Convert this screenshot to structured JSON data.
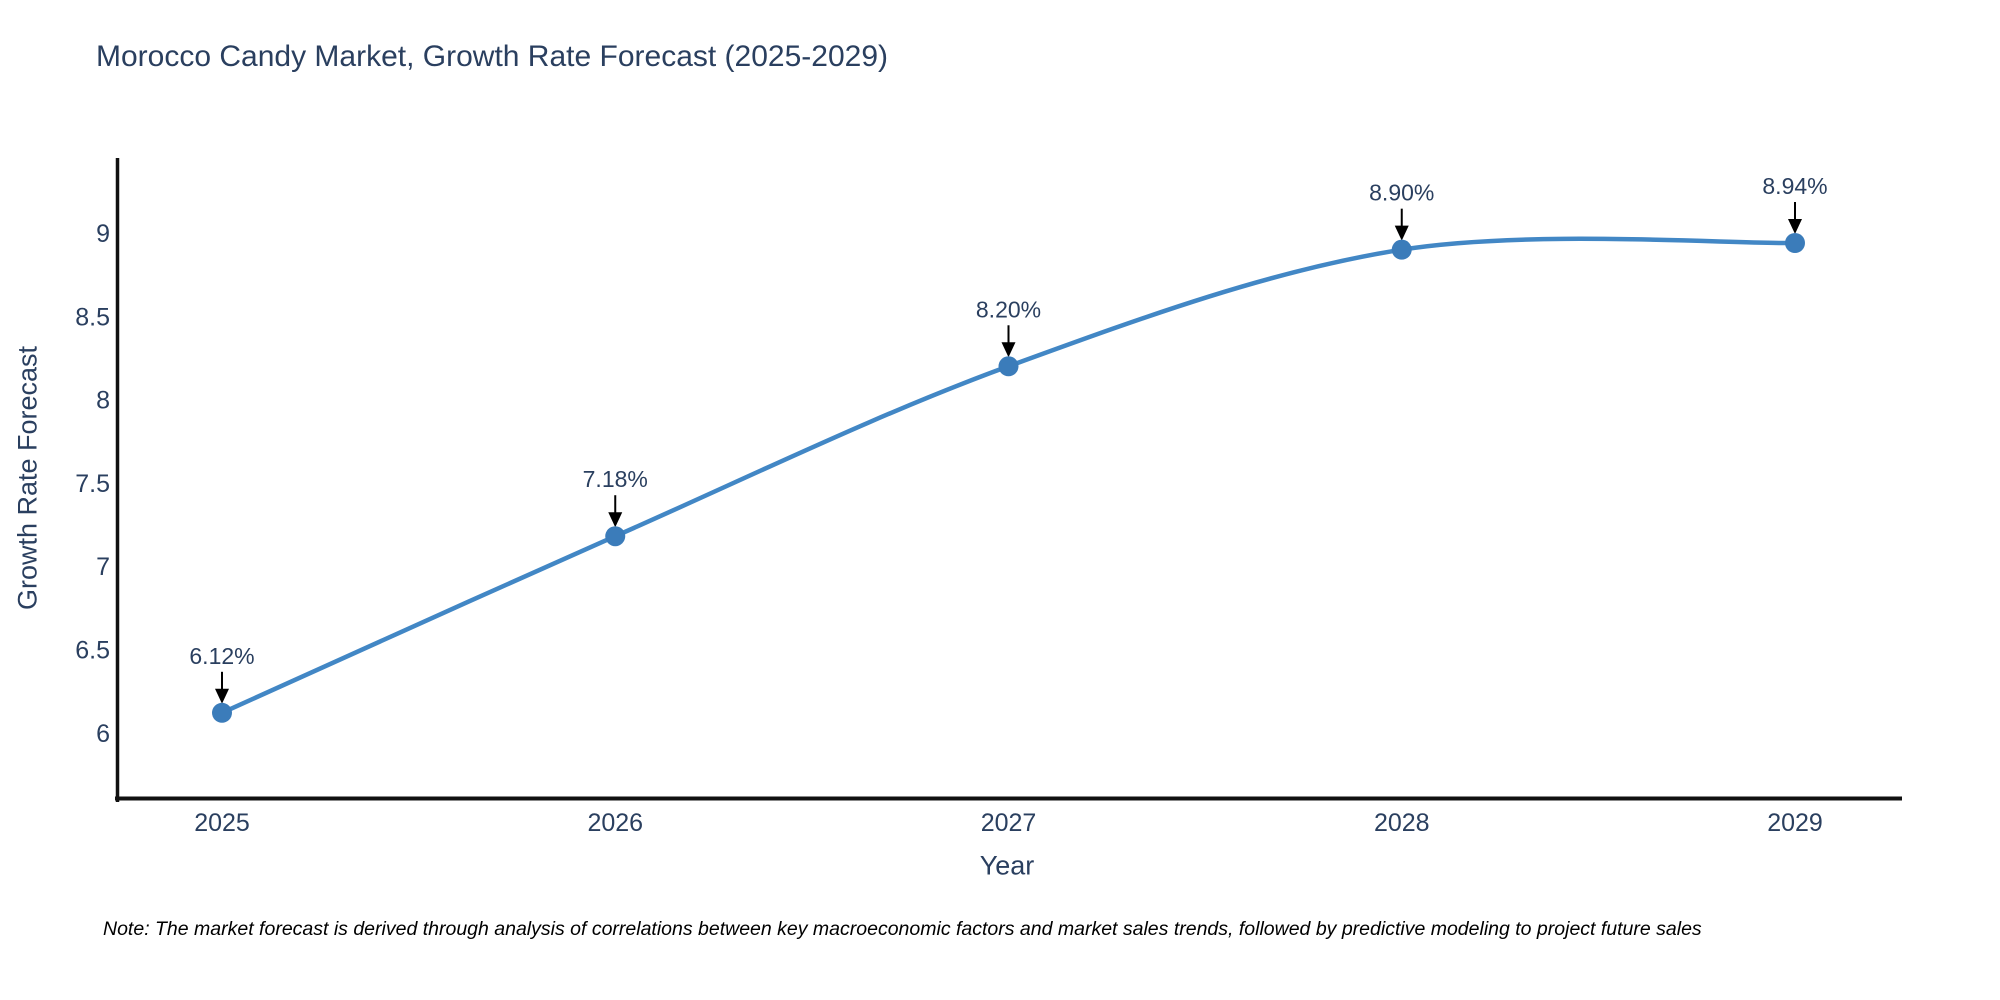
{
  "page": {
    "note": "Note: The market forecast is derived through analysis of correlations between key macroeconomic factors and market sales trends, followed by predictive modeling to project future sales"
  },
  "chart_data": {
    "type": "line",
    "title": "Morocco Candy Market, Growth Rate Forecast (2025-2029)",
    "xlabel": "Year",
    "ylabel": "Growth Rate Forecast",
    "x": [
      2025,
      2026,
      2027,
      2028,
      2029
    ],
    "values": [
      6.12,
      7.18,
      8.2,
      8.9,
      8.94
    ],
    "point_labels": [
      "6.12%",
      "7.18%",
      "8.20%",
      "8.90%",
      "8.94%"
    ],
    "x_ticks": [
      "2025",
      "2026",
      "2027",
      "2028",
      "2029"
    ],
    "y_ticks": [
      9,
      8.5,
      8,
      7.5,
      7,
      6.5,
      6
    ],
    "ylim": [
      5.6,
      9.45
    ],
    "line_shape": "spline",
    "grid": false,
    "legend": "none",
    "annotations_arrow": "down-to-point",
    "colors": {
      "line": "#4287c5",
      "marker": "#3b7cba",
      "axis": "#111111",
      "tick_text": "#2a3f5f",
      "annotation_text": "#2a3f5f",
      "arrow": "#000000",
      "title_text": "#2a3f5f"
    }
  }
}
